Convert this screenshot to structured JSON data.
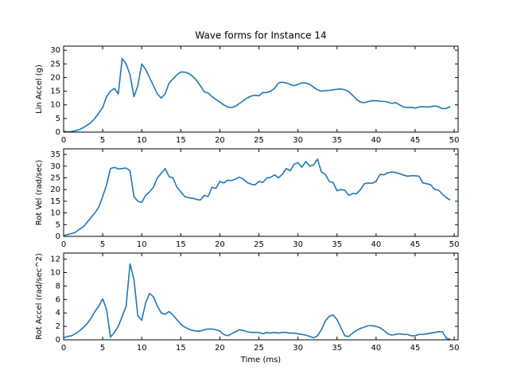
{
  "title": "Wave forms for Instance 14",
  "chart_data": [
    {
      "type": "line",
      "ylabel": "Lin Accel (g)",
      "xlim": [
        0,
        50.5
      ],
      "ylim": [
        0,
        31.5
      ],
      "xticks": [
        0,
        5,
        10,
        15,
        20,
        25,
        30,
        35,
        40,
        45,
        50
      ],
      "yticks": [
        0,
        5,
        10,
        15,
        20,
        25,
        30
      ],
      "x": [
        0,
        0.5,
        1,
        1.5,
        2,
        2.5,
        3,
        3.5,
        4,
        4.5,
        5,
        5.5,
        6,
        6.5,
        7,
        7.5,
        8,
        8.5,
        9,
        9.5,
        10,
        10.5,
        11,
        11.5,
        12,
        12.5,
        13,
        13.5,
        14,
        14.5,
        15,
        15.5,
        16,
        16.5,
        17,
        17.5,
        18,
        18.5,
        19,
        19.5,
        20,
        20.5,
        21,
        21.5,
        22,
        22.5,
        23,
        23.5,
        24,
        24.5,
        25,
        25.5,
        26,
        26.5,
        27,
        27.5,
        28,
        28.5,
        29,
        29.5,
        30,
        30.5,
        31,
        31.5,
        32,
        32.5,
        33,
        33.5,
        34,
        34.5,
        35,
        35.5,
        36,
        36.5,
        37,
        37.5,
        38,
        38.5,
        39,
        39.5,
        40,
        40.5,
        41,
        41.5,
        42,
        42.5,
        43,
        43.5,
        44,
        44.5,
        45,
        45.5,
        46,
        46.5,
        47,
        47.5,
        48,
        48.5,
        49,
        49.5
      ],
      "series": [
        {
          "color": "#1f77b4",
          "values": [
            0.3,
            0.1,
            0.2,
            0.5,
            0.9,
            1.6,
            2.5,
            3.5,
            5,
            7,
            9,
            13,
            15,
            16,
            14,
            27,
            25,
            21,
            13,
            17,
            25,
            23,
            20,
            17,
            14,
            12.5,
            14,
            18,
            19.5,
            21,
            22,
            22,
            21.5,
            20.5,
            19,
            17,
            14.8,
            14.3,
            13,
            12,
            11,
            10,
            9.2,
            9,
            9.5,
            10.5,
            11.5,
            12.5,
            13.2,
            13.5,
            13.3,
            14.5,
            14.5,
            15,
            16,
            18,
            18.3,
            18,
            17.5,
            17,
            17.5,
            18,
            18,
            17.5,
            16.5,
            15.5,
            15,
            15.2,
            15.3,
            15.5,
            15.7,
            15.8,
            15.5,
            14.8,
            13.5,
            12,
            11,
            10.8,
            11.2,
            11.5,
            11.5,
            11.3,
            11.3,
            11,
            10.5,
            10.8,
            10,
            9.2,
            9,
            9.1,
            8.8,
            9.2,
            9.3,
            9.2,
            9.3,
            9.6,
            9.3,
            8.6,
            8.7,
            9.4
          ]
        }
      ]
    },
    {
      "type": "line",
      "ylabel": "Rot Vel (rad/sec)",
      "xlim": [
        0,
        50.5
      ],
      "ylim": [
        0,
        37.4
      ],
      "xticks": [
        0,
        5,
        10,
        15,
        20,
        25,
        30,
        35,
        40,
        45,
        50
      ],
      "yticks": [
        0,
        5,
        10,
        15,
        20,
        25,
        30,
        35
      ],
      "x": [
        0,
        0.5,
        1,
        1.5,
        2,
        2.5,
        3,
        3.5,
        4,
        4.5,
        5,
        5.5,
        6,
        6.5,
        7,
        7.5,
        8,
        8.5,
        9,
        9.5,
        10,
        10.5,
        11,
        11.5,
        12,
        12.5,
        13,
        13.5,
        14,
        14.5,
        15,
        15.5,
        16,
        16.5,
        17,
        17.5,
        18,
        18.5,
        19,
        19.5,
        20,
        20.5,
        21,
        21.5,
        22,
        22.5,
        23,
        23.5,
        24,
        24.5,
        25,
        25.5,
        26,
        26.5,
        27,
        27.5,
        28,
        28.5,
        29,
        29.5,
        30,
        30.5,
        31,
        31.5,
        32,
        32.5,
        33,
        33.5,
        34,
        34.5,
        35,
        35.5,
        36,
        36.5,
        37,
        37.5,
        38,
        38.5,
        39,
        39.5,
        40,
        40.5,
        41,
        41.5,
        42,
        42.5,
        43,
        43.5,
        44,
        44.5,
        45,
        45.5,
        46,
        46.5,
        47,
        47.5,
        48,
        48.5,
        49,
        49.5
      ],
      "series": [
        {
          "color": "#1f77b4",
          "values": [
            0.3,
            0.8,
            1.2,
            1.7,
            3,
            4,
            6,
            8,
            10,
            12.5,
            17,
            22,
            29,
            29.5,
            28.8,
            29,
            29.2,
            28,
            17,
            15,
            14.5,
            17.5,
            19,
            21,
            25,
            27,
            29,
            25.5,
            25,
            21,
            19,
            17,
            16.5,
            16.3,
            15.8,
            15.5,
            17.5,
            17,
            21,
            20.5,
            23.5,
            22.8,
            24,
            23.8,
            24.5,
            25.3,
            24.5,
            23,
            22.3,
            22,
            23.5,
            23,
            25,
            25.2,
            26.3,
            25,
            26.5,
            29,
            28,
            30.8,
            31.5,
            29.5,
            32,
            30,
            30.5,
            33,
            27.5,
            26.5,
            23.5,
            23,
            19.5,
            20,
            19.7,
            17.5,
            18.3,
            18.2,
            20,
            22.5,
            22.8,
            22.7,
            23.5,
            26.5,
            26.3,
            27.2,
            27.5,
            27.3,
            26.8,
            26.2,
            25.7,
            25.9,
            25.9,
            25.7,
            22.8,
            22.5,
            22,
            20,
            19.8,
            18,
            16.5,
            15.5
          ]
        }
      ]
    },
    {
      "type": "line",
      "ylabel": "Rot Accel (rad/sec^2)",
      "xlabel": "Time (ms)",
      "xlim": [
        0,
        50.5
      ],
      "ylim": [
        0,
        12.9
      ],
      "xticks": [
        0,
        5,
        10,
        15,
        20,
        25,
        30,
        35,
        40,
        45,
        50
      ],
      "yticks": [
        0,
        2,
        4,
        6,
        8,
        10,
        12
      ],
      "x": [
        0,
        0.5,
        1,
        1.5,
        2,
        2.5,
        3,
        3.5,
        4,
        4.5,
        5,
        5.5,
        6,
        6.5,
        7,
        7.5,
        8,
        8.5,
        9,
        9.5,
        10,
        10.5,
        11,
        11.5,
        12,
        12.5,
        13,
        13.5,
        14,
        14.5,
        15,
        15.5,
        16,
        16.5,
        17,
        17.5,
        18,
        18.5,
        19,
        19.5,
        20,
        20.5,
        21,
        21.5,
        22,
        22.5,
        23,
        23.5,
        24,
        24.5,
        25,
        25.5,
        26,
        26.5,
        27,
        27.5,
        28,
        28.5,
        29,
        29.5,
        30,
        30.5,
        31,
        31.5,
        32,
        32.5,
        33,
        33.5,
        34,
        34.5,
        35,
        35.5,
        36,
        36.5,
        37,
        37.5,
        38,
        38.5,
        39,
        39.5,
        40,
        40.5,
        41,
        41.5,
        42,
        42.5,
        43,
        43.5,
        44,
        44.5,
        45,
        45.5,
        46,
        46.5,
        47,
        47.5,
        48,
        48.5,
        49,
        49.5
      ],
      "series": [
        {
          "color": "#1f77b4",
          "values": [
            0.3,
            0.5,
            0.6,
            0.9,
            1.3,
            1.8,
            2.4,
            3.2,
            4.2,
            5,
            6.1,
            4.5,
            0.4,
            1.1,
            2,
            3.5,
            5,
            11.3,
            9,
            3.6,
            2.9,
            5.5,
            6.9,
            6.4,
            5,
            4,
            3.8,
            4.2,
            3.7,
            3,
            2.3,
            1.9,
            1.6,
            1.4,
            1.3,
            1.3,
            1.5,
            1.6,
            1.6,
            1.5,
            1.3,
            0.8,
            0.6,
            0.9,
            1.2,
            1.5,
            1.4,
            1.2,
            1.1,
            1.1,
            1.1,
            0.9,
            1.1,
            1,
            1.1,
            1,
            1.1,
            1.1,
            1,
            1,
            0.9,
            0.8,
            0.7,
            0.5,
            0.3,
            0.6,
            1.5,
            2.8,
            3.5,
            3.7,
            3,
            1.8,
            0.6,
            0.5,
            1,
            1.4,
            1.7,
            1.9,
            2.1,
            2.1,
            2,
            1.8,
            1.4,
            0.9,
            0.7,
            0.8,
            0.9,
            0.8,
            0.8,
            0.6,
            0.6,
            0.8,
            0.8,
            0.9,
            1,
            1.1,
            1.2,
            1.2,
            0.2,
            0.1
          ]
        }
      ]
    }
  ]
}
